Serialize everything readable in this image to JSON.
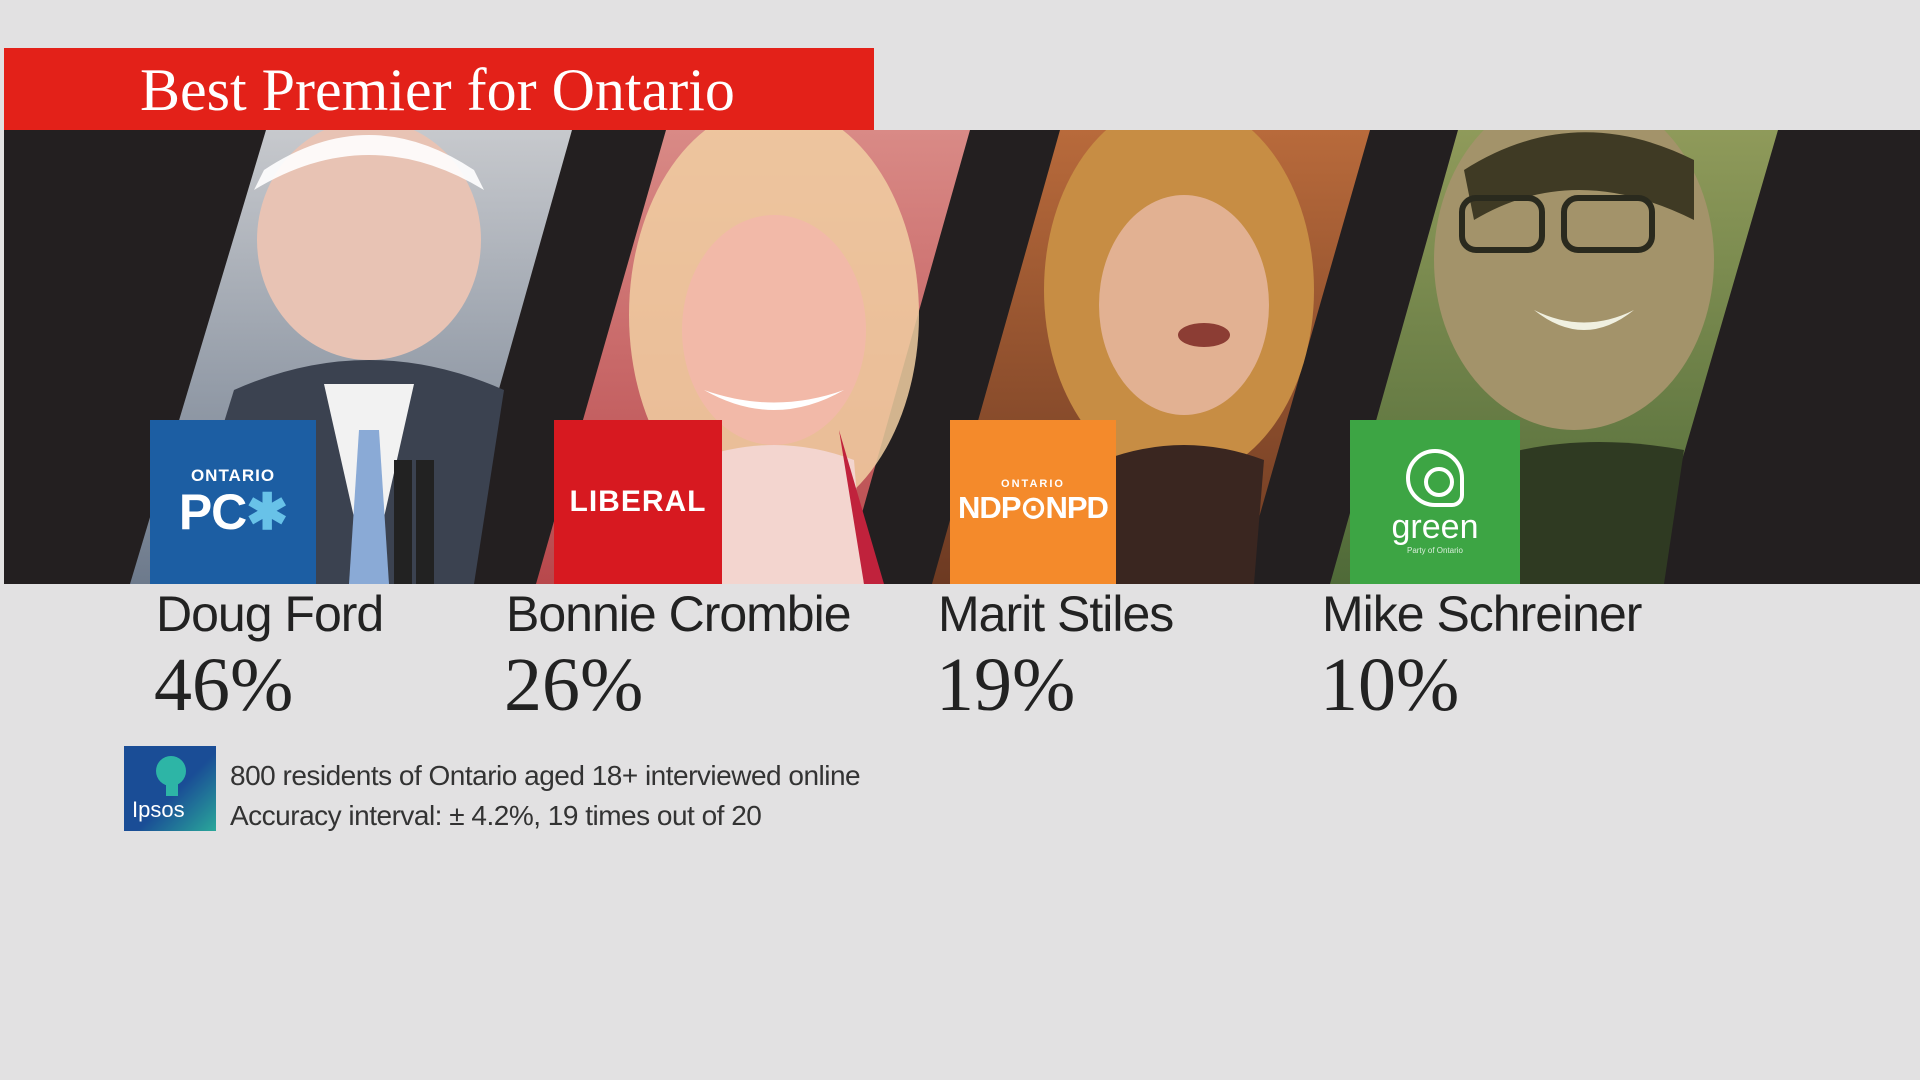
{
  "title": "Best Premier for Ontario",
  "colors": {
    "title_bar": "#e32119",
    "strip": "#231f20",
    "background": "#e2e1e2",
    "pc": "#1c5ea3",
    "liberal": "#d71920",
    "ndp": "#f48a2b",
    "green": "#3da544"
  },
  "logos": {
    "pc_small": "ONTARIO",
    "pc_big_left": "PC",
    "pc_big_mark": "✱",
    "liberal": "LIBERAL",
    "ndp_small": "ONTARIO",
    "ndp_big": "NDP⊙NPD",
    "green": "green",
    "green_tiny": "Party of Ontario",
    "ipsos": "Ipsos"
  },
  "candidates": [
    {
      "name": "Doug Ford",
      "percent_label": "46%"
    },
    {
      "name": "Bonnie Crombie",
      "percent_label": "26%"
    },
    {
      "name": "Marit Stiles",
      "percent_label": "19%"
    },
    {
      "name": "Mike Schreiner",
      "percent_label": "10%"
    }
  ],
  "notes": {
    "line1": "800 residents of Ontario aged 18+ interviewed online",
    "line2": "Accuracy interval: ± 4.2%, 19 times out of 20"
  },
  "chart_data": {
    "type": "bar",
    "title": "Best Premier for Ontario",
    "categories": [
      "Doug Ford",
      "Bonnie Crombie",
      "Marit Stiles",
      "Mike Schreiner"
    ],
    "values": [
      46,
      26,
      19,
      10
    ],
    "unit": "%"
  }
}
